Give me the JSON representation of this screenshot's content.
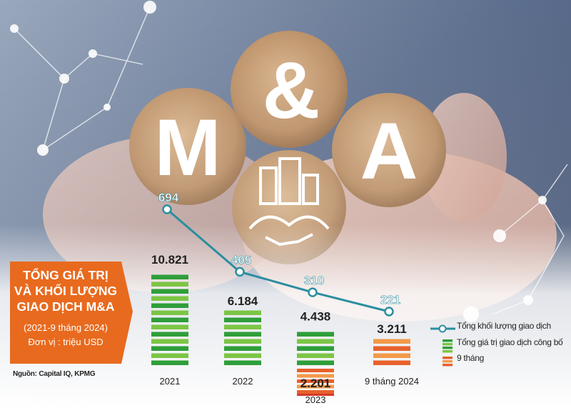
{
  "title": {
    "lines": [
      "TỔNG GIÁ TRỊ",
      "VÀ KHỐI LƯỢNG",
      "GIAO DỊCH M&A"
    ],
    "period": "(2021-9 tháng 2024)",
    "unit": "Đơn vị : triệu USD"
  },
  "source": "Nguồn: Capital IQ, KPMG",
  "image_labels": [
    "M",
    "&",
    "A"
  ],
  "legend": {
    "line_label": "Tổng khối lượng giao dịch",
    "bar_label": "Tổng giá trị giao dịch công bố",
    "nine_month_label": "9 tháng"
  },
  "colors": {
    "bar_green": "#2f9e3a",
    "bar_green_light": "#7cc545",
    "bar_orange": "#e8612c",
    "bar_orange_light": "#f39a4a",
    "line": "#2b8ea0",
    "title_bg": "#e86a1e",
    "label_text": "#222222"
  },
  "chart_data": {
    "type": "bar",
    "categories": [
      "2021",
      "2022",
      "2023",
      "9 tháng 2024"
    ],
    "series": [
      {
        "name": "Tổng giá trị giao dịch công bố",
        "kind": "bar",
        "values": [
          10821,
          6184,
          4438,
          null
        ],
        "value_labels": [
          "10.821",
          "6.184",
          "4.438",
          ""
        ]
      },
      {
        "name": "9 tháng",
        "kind": "bar",
        "values": [
          null,
          null,
          2201,
          3211
        ],
        "value_labels": [
          "",
          "",
          "2.201",
          "3.211"
        ]
      },
      {
        "name": "Tổng khối lượng giao dịch",
        "kind": "line",
        "values": [
          694,
          405,
          310,
          221
        ],
        "value_labels": [
          "694",
          "405",
          "310",
          "221"
        ]
      }
    ],
    "unit": "triệu USD"
  }
}
